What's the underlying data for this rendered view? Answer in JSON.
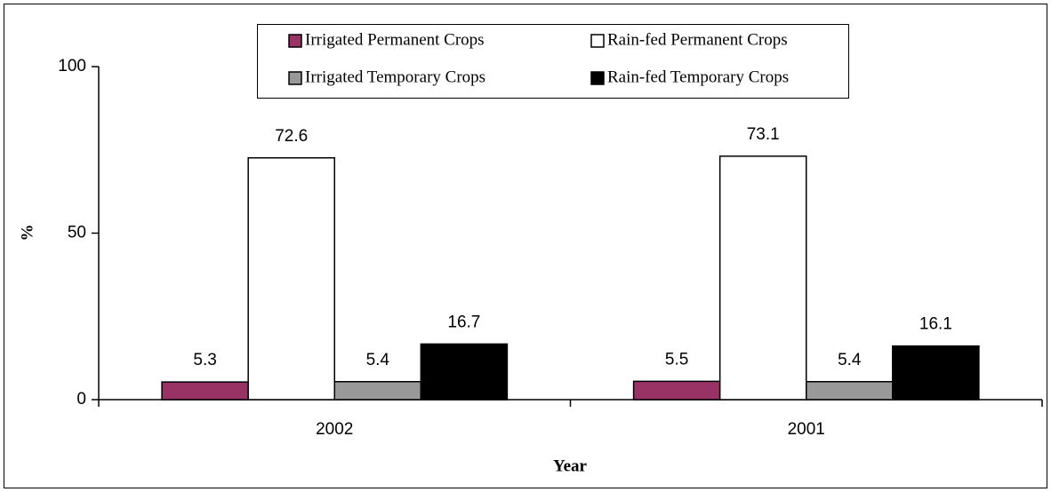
{
  "chart_data": {
    "type": "bar",
    "categories": [
      "2002",
      "2001"
    ],
    "series": [
      {
        "name": "Irrigated Permanent Crops",
        "color": "#993366",
        "values": [
          5.3,
          5.5
        ]
      },
      {
        "name": "Rain-fed Permanent Crops",
        "color": "#ffffff",
        "values": [
          72.6,
          73.1
        ]
      },
      {
        "name": "Irrigated Temporary Crops",
        "color": "#999999",
        "values": [
          5.4,
          5.4
        ]
      },
      {
        "name": "Rain-fed Temporary Crops",
        "color": "#000000",
        "values": [
          16.7,
          16.1
        ]
      }
    ],
    "x_label": "Year",
    "y_label": "%",
    "ylim": [
      0,
      100
    ],
    "yticks": [
      0,
      50,
      100
    ],
    "legend": "top",
    "grid": false
  }
}
